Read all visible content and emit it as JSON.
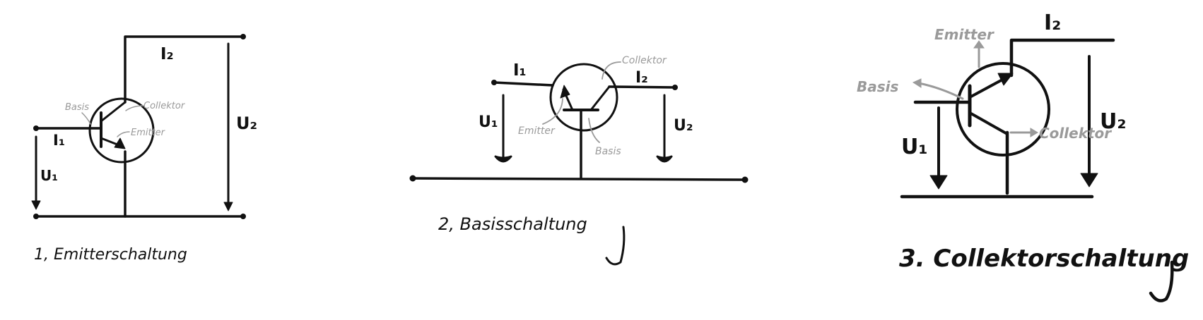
{
  "colors": {
    "ink": "#111111",
    "annotation": "#9a9a9a",
    "background": "#ffffff"
  },
  "circuits": [
    {
      "caption": "1, Emitterschaltung",
      "labels": {
        "input_current": "I₁",
        "output_current": "I₂",
        "input_voltage": "U₁",
        "output_voltage": "U₂"
      },
      "annotations": {
        "base": "Basis",
        "collector": "Collektor",
        "emitter": "Emitter"
      }
    },
    {
      "caption": "2, Basisschaltung",
      "labels": {
        "input_current": "I₁",
        "output_current": "I₂",
        "input_voltage": "U₁",
        "output_voltage": "U₂"
      },
      "annotations": {
        "base": "Basis",
        "collector": "Collektor",
        "emitter": "Emitter"
      }
    },
    {
      "caption": "3. Collektorschaltung",
      "labels": {
        "output_current": "I₂",
        "input_voltage": "U₁",
        "output_voltage": "U₂"
      },
      "annotations": {
        "base": "Basis",
        "collector": "Collektor",
        "emitter": "Emitter"
      }
    }
  ]
}
